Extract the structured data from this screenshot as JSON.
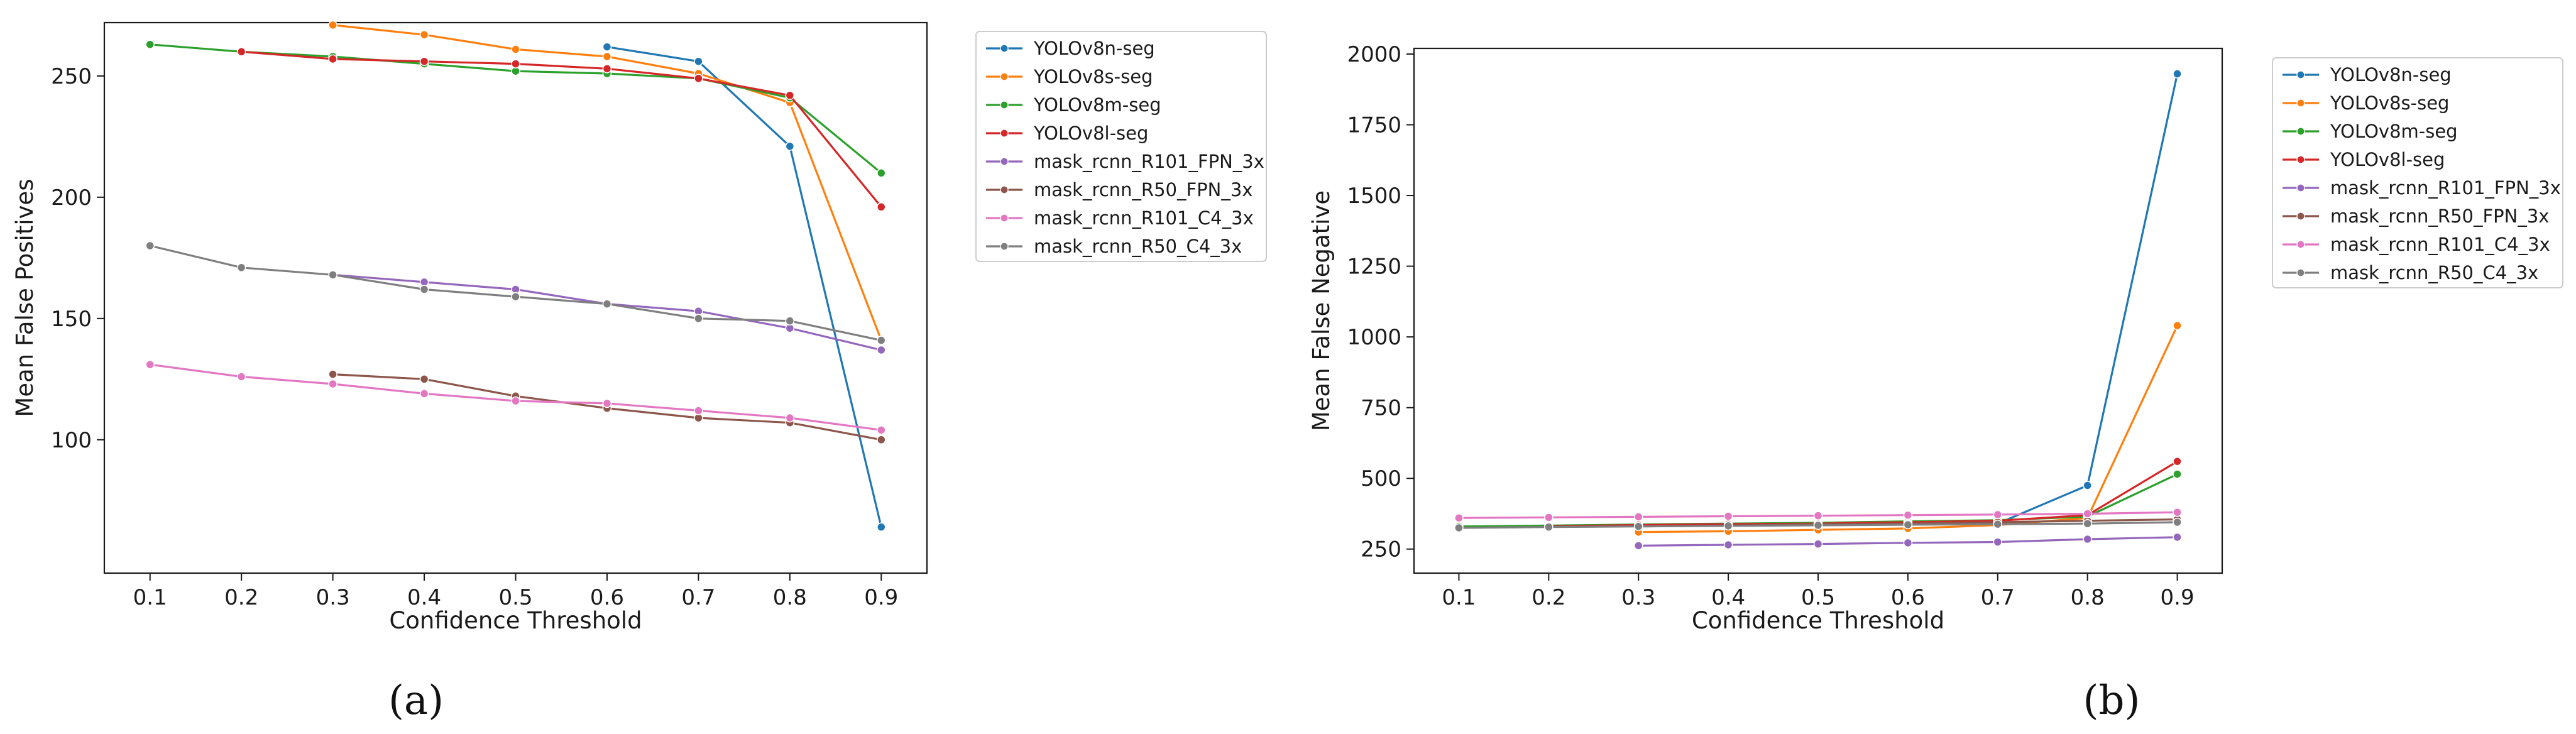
{
  "chart_data": [
    {
      "type": "line",
      "sublabel": "(a)",
      "xlabel": "Confidence Threshold",
      "ylabel": "Mean False Positives",
      "x": [
        0.1,
        0.2,
        0.3,
        0.4,
        0.5,
        0.6,
        0.7,
        0.8,
        0.9
      ],
      "xlim": [
        0.05,
        0.95
      ],
      "ylim": [
        45,
        272
      ],
      "yticks": [
        100,
        150,
        200,
        250
      ],
      "grid": false,
      "legend": "outside-right",
      "series": [
        {
          "name": "YOLOv8n-seg",
          "color": "#1f77b4",
          "values": [
            null,
            null,
            null,
            null,
            null,
            262,
            256,
            221,
            64
          ]
        },
        {
          "name": "YOLOv8s-seg",
          "color": "#ff7f0e",
          "values": [
            null,
            null,
            271,
            267,
            261,
            258,
            251,
            239,
            141
          ]
        },
        {
          "name": "YOLOv8m-seg",
          "color": "#2ca02c",
          "values": [
            263,
            260,
            258,
            255,
            252,
            251,
            249,
            241,
            210
          ]
        },
        {
          "name": "YOLOv8l-seg",
          "color": "#d62728",
          "values": [
            null,
            260,
            257,
            256,
            255,
            253,
            249,
            242,
            196
          ]
        },
        {
          "name": "mask_rcnn_R101_FPN_3x",
          "color": "#9467bd",
          "values": [
            null,
            null,
            168,
            165,
            162,
            156,
            153,
            146,
            137
          ]
        },
        {
          "name": "mask_rcnn_R50_FPN_3x",
          "color": "#8c564b",
          "values": [
            null,
            null,
            127,
            125,
            118,
            113,
            109,
            107,
            100
          ]
        },
        {
          "name": "mask_rcnn_R101_C4_3x",
          "color": "#e377c2",
          "values": [
            131,
            126,
            123,
            119,
            116,
            115,
            112,
            109,
            104
          ]
        },
        {
          "name": "mask_rcnn_R50_C4_3x",
          "color": "#7f7f7f",
          "values": [
            180,
            171,
            168,
            162,
            159,
            156,
            150,
            149,
            141
          ]
        }
      ]
    },
    {
      "type": "line",
      "sublabel": "(b)",
      "xlabel": "Confidence Threshold",
      "ylabel": "Mean False Negative",
      "x": [
        0.1,
        0.2,
        0.3,
        0.4,
        0.5,
        0.6,
        0.7,
        0.8,
        0.9
      ],
      "xlim": [
        0.05,
        0.95
      ],
      "ylim": [
        165,
        2020
      ],
      "yticks": [
        250,
        500,
        750,
        1000,
        1250,
        1500,
        1750,
        2000
      ],
      "grid": false,
      "legend": "outside-right",
      "series": [
        {
          "name": "YOLOv8n-seg",
          "color": "#1f77b4",
          "values": [
            null,
            null,
            null,
            null,
            null,
            null,
            340,
            475,
            1930
          ]
        },
        {
          "name": "YOLOv8s-seg",
          "color": "#ff7f0e",
          "values": [
            null,
            null,
            310,
            313,
            318,
            323,
            335,
            360,
            1040
          ]
        },
        {
          "name": "YOLOv8m-seg",
          "color": "#2ca02c",
          "values": [
            330,
            333,
            337,
            340,
            343,
            348,
            352,
            365,
            515
          ]
        },
        {
          "name": "YOLOv8l-seg",
          "color": "#d62728",
          "values": [
            null,
            330,
            335,
            338,
            340,
            345,
            350,
            370,
            560
          ]
        },
        {
          "name": "mask_rcnn_R101_FPN_3x",
          "color": "#9467bd",
          "values": [
            null,
            null,
            262,
            265,
            268,
            272,
            275,
            285,
            292
          ]
        },
        {
          "name": "mask_rcnn_R50_FPN_3x",
          "color": "#8c564b",
          "values": [
            null,
            null,
            330,
            333,
            338,
            340,
            345,
            350,
            355
          ]
        },
        {
          "name": "mask_rcnn_R101_C4_3x",
          "color": "#e377c2",
          "values": [
            360,
            362,
            364,
            366,
            368,
            370,
            372,
            375,
            380
          ]
        },
        {
          "name": "mask_rcnn_R50_C4_3x",
          "color": "#7f7f7f",
          "values": [
            325,
            328,
            330,
            332,
            334,
            336,
            338,
            340,
            345
          ]
        }
      ]
    }
  ]
}
